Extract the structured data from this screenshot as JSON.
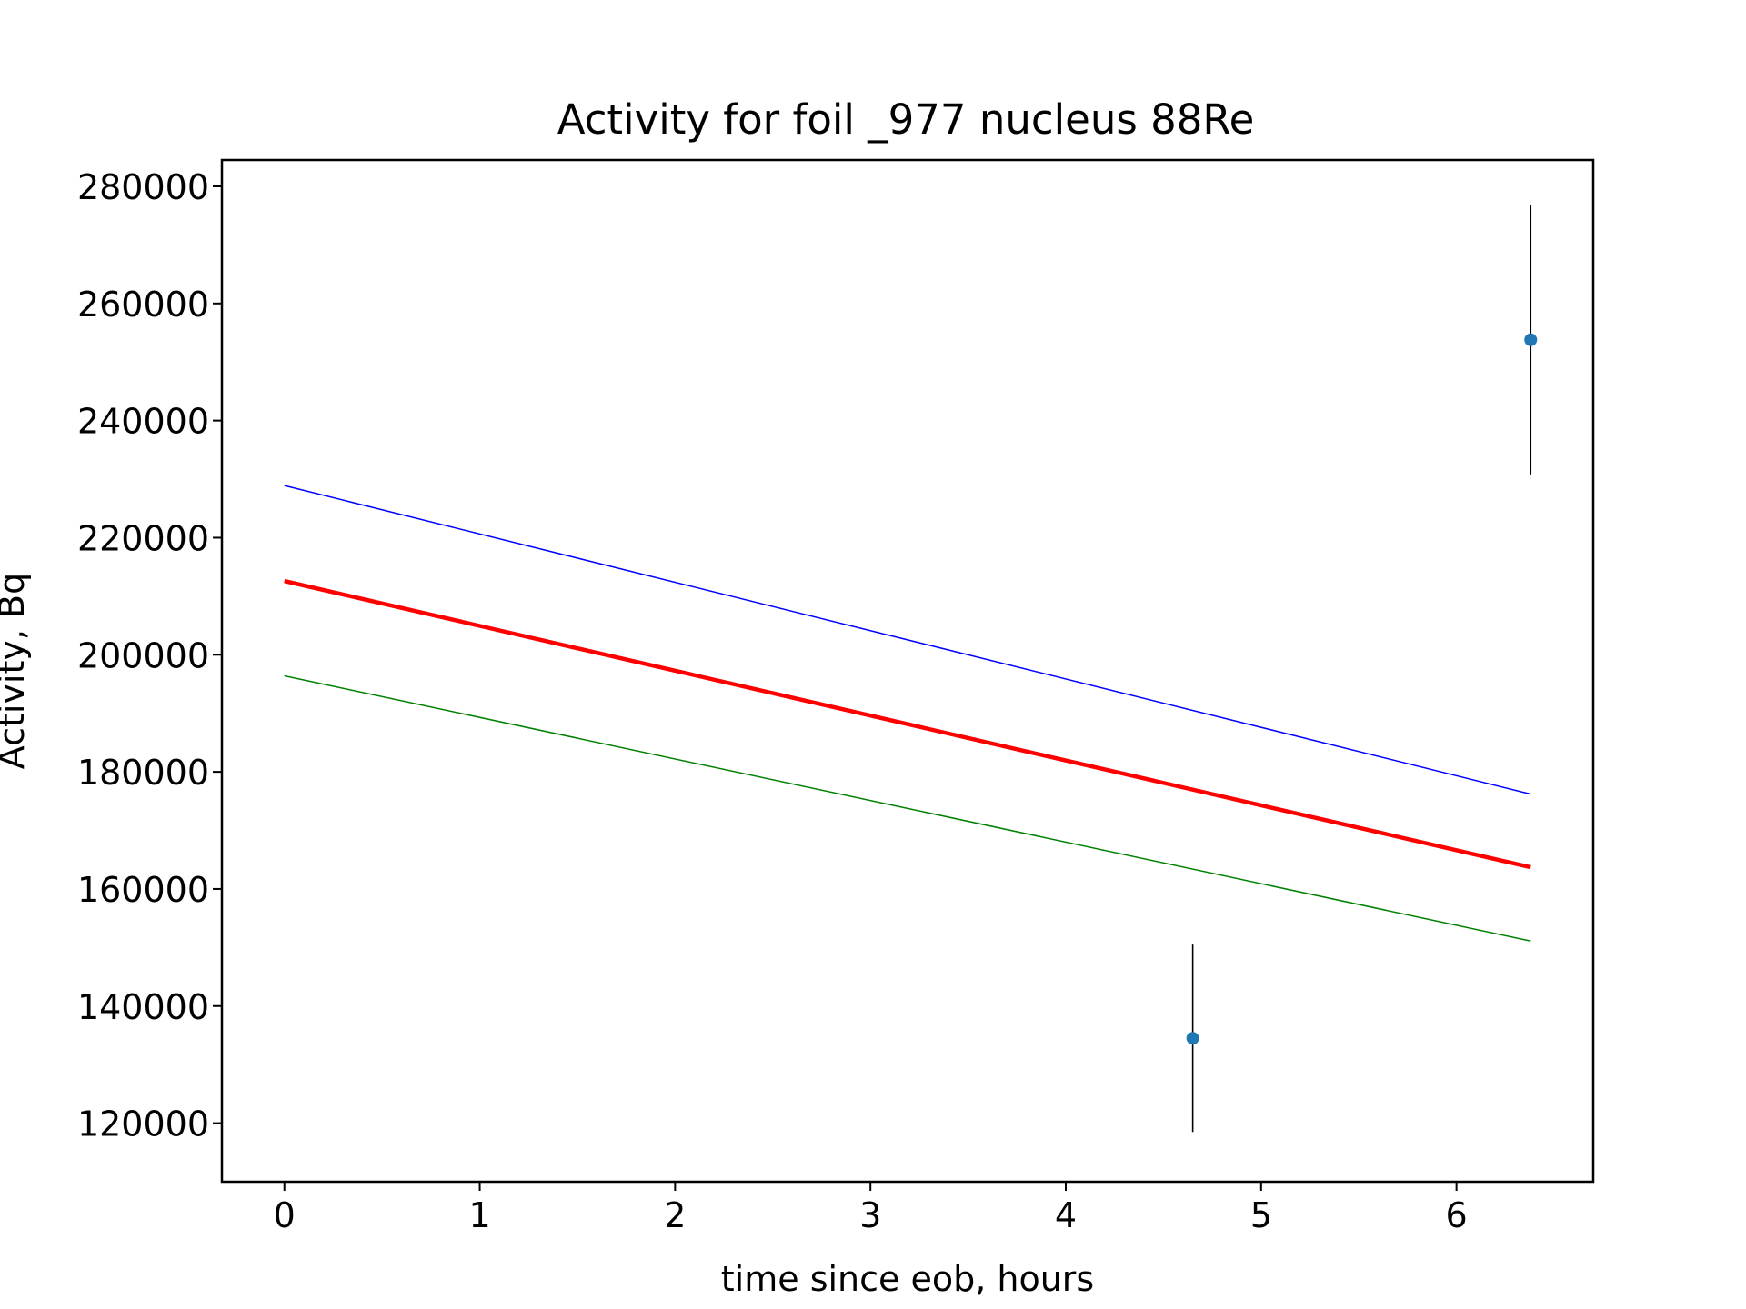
{
  "chart_data": {
    "type": "scatter",
    "title": "Activity for foil _977 nucleus 88Re",
    "xlabel": "time since eob, hours",
    "ylabel": "Activity, Bq",
    "xlim": [
      -0.32,
      6.7
    ],
    "ylim": [
      110000,
      284500
    ],
    "x_ticks": [
      0,
      1,
      2,
      3,
      4,
      5,
      6
    ],
    "x_tick_labels": [
      "0",
      "1",
      "2",
      "3",
      "4",
      "5",
      "6"
    ],
    "y_ticks": [
      120000,
      140000,
      160000,
      180000,
      200000,
      220000,
      240000,
      260000,
      280000
    ],
    "y_tick_labels": [
      "120000",
      "140000",
      "160000",
      "180000",
      "200000",
      "220000",
      "240000",
      "260000",
      "280000"
    ],
    "grid": false,
    "legend": "none",
    "points": [
      {
        "x": 4.65,
        "y": 134500,
        "yerr": 16000
      },
      {
        "x": 6.38,
        "y": 253800,
        "yerr": 23000
      }
    ],
    "lines": [
      {
        "color": "#0000ff",
        "width": "thin",
        "x": [
          0,
          6.38
        ],
        "y": [
          228900,
          176200
        ]
      },
      {
        "color": "#ff0000",
        "width": "thick",
        "x": [
          0,
          6.38
        ],
        "y": [
          212600,
          163700
        ]
      },
      {
        "color": "#008000",
        "width": "thin",
        "x": [
          0,
          6.38
        ],
        "y": [
          196400,
          151100
        ]
      }
    ],
    "colors": {
      "points": "#1f77b4",
      "errorbars": "#000000"
    }
  }
}
